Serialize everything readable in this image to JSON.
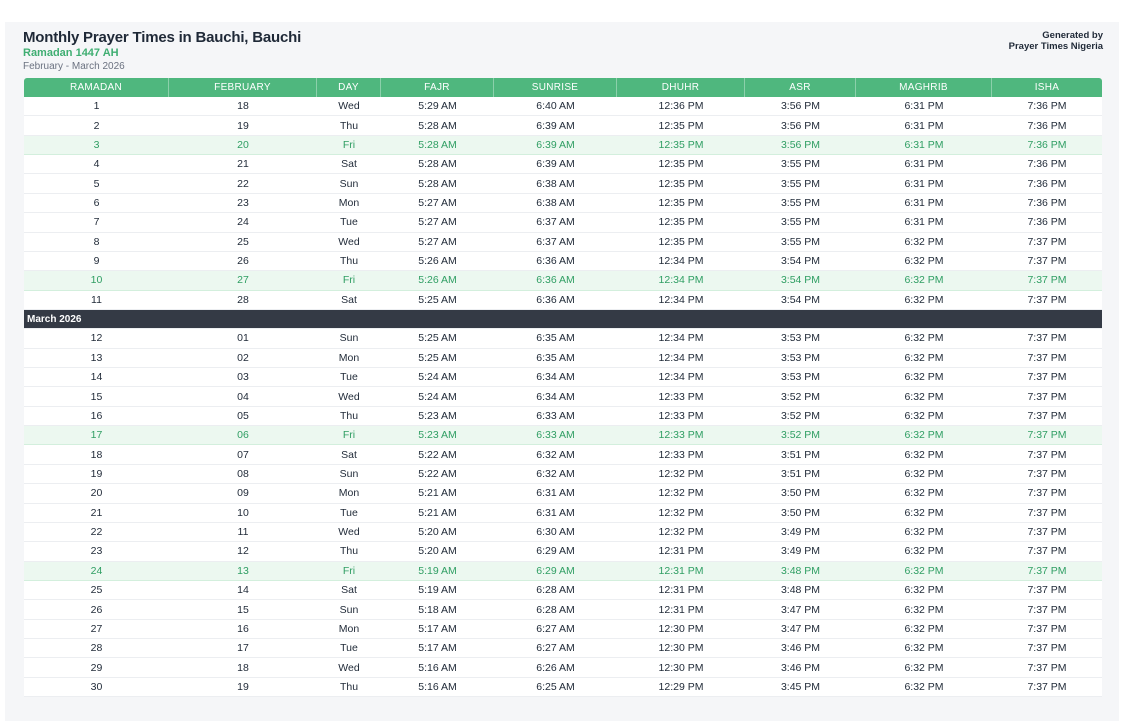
{
  "header": {
    "title": "Monthly Prayer Times in Bauchi, Bauchi",
    "subtitle": "Ramadan 1447 AH",
    "period": "February - March 2026",
    "generated_by": "Generated by",
    "generator": "Prayer Times Nigeria"
  },
  "table": {
    "columns": [
      "RAMADAN",
      "FEBRUARY",
      "DAY",
      "FAJR",
      "SUNRISE",
      "DHUHR",
      "ASR",
      "MAGHRIB",
      "ISHA"
    ],
    "month_divider": "March 2026",
    "february_rows": [
      [
        "1",
        "18",
        "Wed",
        "5:29 AM",
        "6:40 AM",
        "12:36 PM",
        "3:56 PM",
        "6:31 PM",
        "7:36 PM"
      ],
      [
        "2",
        "19",
        "Thu",
        "5:28 AM",
        "6:39 AM",
        "12:35 PM",
        "3:56 PM",
        "6:31 PM",
        "7:36 PM"
      ],
      [
        "3",
        "20",
        "Fri",
        "5:28 AM",
        "6:39 AM",
        "12:35 PM",
        "3:56 PM",
        "6:31 PM",
        "7:36 PM"
      ],
      [
        "4",
        "21",
        "Sat",
        "5:28 AM",
        "6:39 AM",
        "12:35 PM",
        "3:55 PM",
        "6:31 PM",
        "7:36 PM"
      ],
      [
        "5",
        "22",
        "Sun",
        "5:28 AM",
        "6:38 AM",
        "12:35 PM",
        "3:55 PM",
        "6:31 PM",
        "7:36 PM"
      ],
      [
        "6",
        "23",
        "Mon",
        "5:27 AM",
        "6:38 AM",
        "12:35 PM",
        "3:55 PM",
        "6:31 PM",
        "7:36 PM"
      ],
      [
        "7",
        "24",
        "Tue",
        "5:27 AM",
        "6:37 AM",
        "12:35 PM",
        "3:55 PM",
        "6:31 PM",
        "7:36 PM"
      ],
      [
        "8",
        "25",
        "Wed",
        "5:27 AM",
        "6:37 AM",
        "12:35 PM",
        "3:55 PM",
        "6:32 PM",
        "7:37 PM"
      ],
      [
        "9",
        "26",
        "Thu",
        "5:26 AM",
        "6:36 AM",
        "12:34 PM",
        "3:54 PM",
        "6:32 PM",
        "7:37 PM"
      ],
      [
        "10",
        "27",
        "Fri",
        "5:26 AM",
        "6:36 AM",
        "12:34 PM",
        "3:54 PM",
        "6:32 PM",
        "7:37 PM"
      ],
      [
        "11",
        "28",
        "Sat",
        "5:25 AM",
        "6:36 AM",
        "12:34 PM",
        "3:54 PM",
        "6:32 PM",
        "7:37 PM"
      ]
    ],
    "march_rows": [
      [
        "12",
        "01",
        "Sun",
        "5:25 AM",
        "6:35 AM",
        "12:34 PM",
        "3:53 PM",
        "6:32 PM",
        "7:37 PM"
      ],
      [
        "13",
        "02",
        "Mon",
        "5:25 AM",
        "6:35 AM",
        "12:34 PM",
        "3:53 PM",
        "6:32 PM",
        "7:37 PM"
      ],
      [
        "14",
        "03",
        "Tue",
        "5:24 AM",
        "6:34 AM",
        "12:34 PM",
        "3:53 PM",
        "6:32 PM",
        "7:37 PM"
      ],
      [
        "15",
        "04",
        "Wed",
        "5:24 AM",
        "6:34 AM",
        "12:33 PM",
        "3:52 PM",
        "6:32 PM",
        "7:37 PM"
      ],
      [
        "16",
        "05",
        "Thu",
        "5:23 AM",
        "6:33 AM",
        "12:33 PM",
        "3:52 PM",
        "6:32 PM",
        "7:37 PM"
      ],
      [
        "17",
        "06",
        "Fri",
        "5:23 AM",
        "6:33 AM",
        "12:33 PM",
        "3:52 PM",
        "6:32 PM",
        "7:37 PM"
      ],
      [
        "18",
        "07",
        "Sat",
        "5:22 AM",
        "6:32 AM",
        "12:33 PM",
        "3:51 PM",
        "6:32 PM",
        "7:37 PM"
      ],
      [
        "19",
        "08",
        "Sun",
        "5:22 AM",
        "6:32 AM",
        "12:32 PM",
        "3:51 PM",
        "6:32 PM",
        "7:37 PM"
      ],
      [
        "20",
        "09",
        "Mon",
        "5:21 AM",
        "6:31 AM",
        "12:32 PM",
        "3:50 PM",
        "6:32 PM",
        "7:37 PM"
      ],
      [
        "21",
        "10",
        "Tue",
        "5:21 AM",
        "6:31 AM",
        "12:32 PM",
        "3:50 PM",
        "6:32 PM",
        "7:37 PM"
      ],
      [
        "22",
        "11",
        "Wed",
        "5:20 AM",
        "6:30 AM",
        "12:32 PM",
        "3:49 PM",
        "6:32 PM",
        "7:37 PM"
      ],
      [
        "23",
        "12",
        "Thu",
        "5:20 AM",
        "6:29 AM",
        "12:31 PM",
        "3:49 PM",
        "6:32 PM",
        "7:37 PM"
      ],
      [
        "24",
        "13",
        "Fri",
        "5:19 AM",
        "6:29 AM",
        "12:31 PM",
        "3:48 PM",
        "6:32 PM",
        "7:37 PM"
      ],
      [
        "25",
        "14",
        "Sat",
        "5:19 AM",
        "6:28 AM",
        "12:31 PM",
        "3:48 PM",
        "6:32 PM",
        "7:37 PM"
      ],
      [
        "26",
        "15",
        "Sun",
        "5:18 AM",
        "6:28 AM",
        "12:31 PM",
        "3:47 PM",
        "6:32 PM",
        "7:37 PM"
      ],
      [
        "27",
        "16",
        "Mon",
        "5:17 AM",
        "6:27 AM",
        "12:30 PM",
        "3:47 PM",
        "6:32 PM",
        "7:37 PM"
      ],
      [
        "28",
        "17",
        "Tue",
        "5:17 AM",
        "6:27 AM",
        "12:30 PM",
        "3:46 PM",
        "6:32 PM",
        "7:37 PM"
      ],
      [
        "29",
        "18",
        "Wed",
        "5:16 AM",
        "6:26 AM",
        "12:30 PM",
        "3:46 PM",
        "6:32 PM",
        "7:37 PM"
      ],
      [
        "30",
        "19",
        "Thu",
        "5:16 AM",
        "6:25 AM",
        "12:29 PM",
        "3:45 PM",
        "6:32 PM",
        "7:37 PM"
      ]
    ]
  },
  "colors": {
    "header_green": "#4fb77e",
    "friday_highlight": "#ecf8f0",
    "friday_text": "#2f9e63",
    "month_divider_bg": "#343a45"
  }
}
